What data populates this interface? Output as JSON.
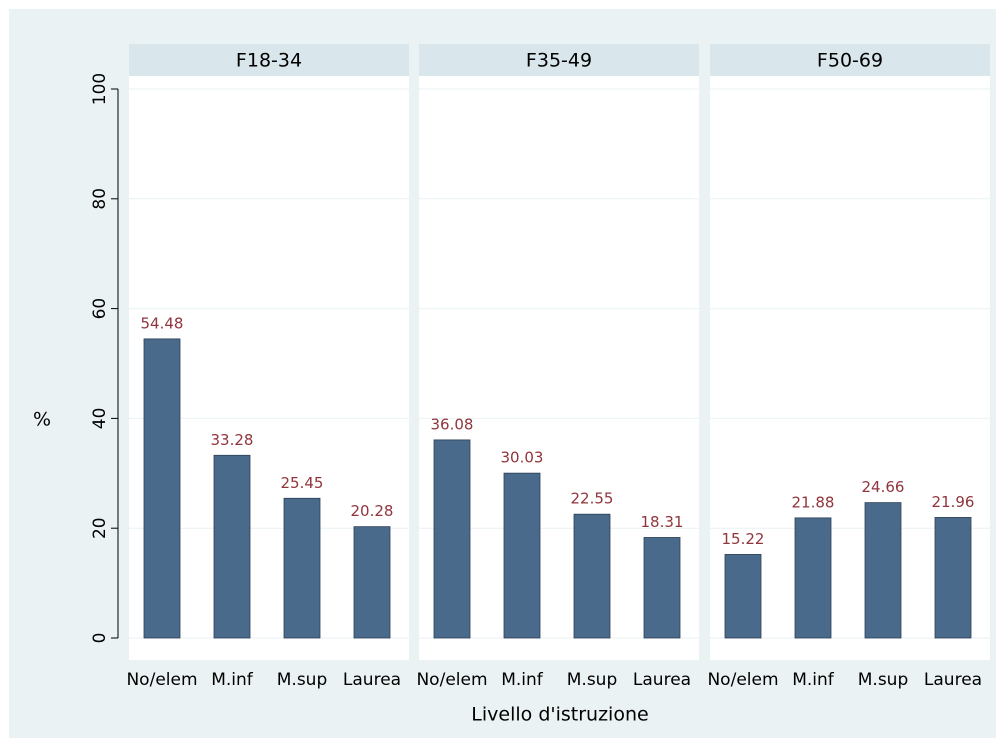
{
  "chart_data": {
    "type": "bar",
    "ylabel": "%",
    "xlabel": "Livello d'istruzione",
    "ylim": [
      0,
      100
    ],
    "yticks": [
      0,
      20,
      40,
      60,
      80,
      100
    ],
    "grid": true,
    "color": "#4a6a8b",
    "label_color": "#90353b",
    "panels": [
      {
        "title": "F18-34",
        "categories": [
          "No/elem",
          "M.inf",
          "M.sup",
          "Laurea"
        ],
        "values": [
          54.48,
          33.28,
          25.45,
          20.28
        ]
      },
      {
        "title": "F35-49",
        "categories": [
          "No/elem",
          "M.inf",
          "M.sup",
          "Laurea"
        ],
        "values": [
          36.08,
          30.03,
          22.55,
          18.31
        ]
      },
      {
        "title": "F50-69",
        "categories": [
          "No/elem",
          "M.inf",
          "M.sup",
          "Laurea"
        ],
        "values": [
          15.22,
          21.88,
          24.66,
          21.96
        ]
      }
    ]
  }
}
